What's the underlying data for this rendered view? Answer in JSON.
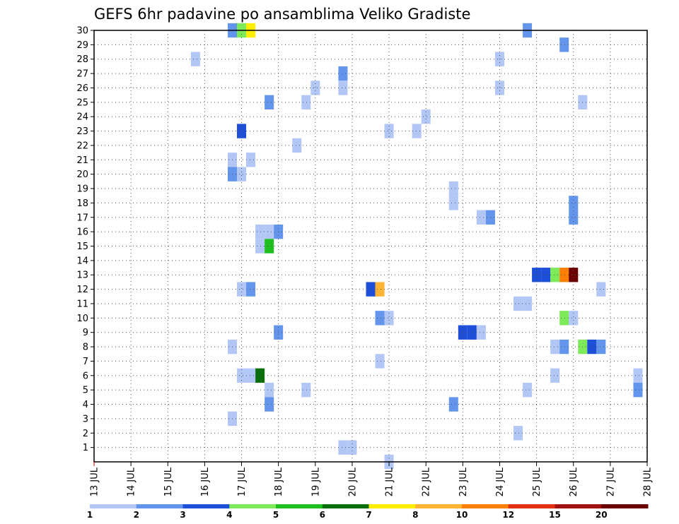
{
  "chart_data": {
    "type": "heatmap",
    "title": "GEFS 6hr padavine po ansamblima Veliko Gradiste",
    "x_tick_labels": [
      "13 JUL",
      "14 JUL",
      "15 JUL",
      "16 JUL",
      "17 JUL",
      "18 JUL",
      "19 JUL",
      "20 JUL",
      "21 JUL",
      "22 JUL",
      "23 JUL",
      "24 JUL",
      "25 JUL",
      "26 JUL",
      "27 JUL",
      "28 JUL"
    ],
    "x_range_days": [
      13,
      28
    ],
    "y_tick_labels": [
      "1",
      "2",
      "3",
      "4",
      "5",
      "6",
      "7",
      "8",
      "9",
      "10",
      "11",
      "12",
      "13",
      "14",
      "15",
      "16",
      "17",
      "18",
      "19",
      "20",
      "21",
      "22",
      "23",
      "24",
      "25",
      "26",
      "27",
      "28",
      "29",
      "30"
    ],
    "y_range": [
      0,
      30
    ],
    "grid": true,
    "colorbar": {
      "labels": [
        "1",
        "2",
        "3",
        "4",
        "5",
        "6",
        "7",
        "8",
        "10",
        "12",
        "15",
        "20"
      ],
      "colors": [
        "#b3c7f7",
        "#6495ed",
        "#1e4fd8",
        "#7dea5a",
        "#1fbf1f",
        "#0a6f0a",
        "#ffee00",
        "#ffb433",
        "#ff7f00",
        "#e03010",
        "#a31010",
        "#6b0000"
      ]
    },
    "cells": [
      [
        30,
        16.75,
        2
      ],
      [
        30,
        17.0,
        4
      ],
      [
        30,
        17.25,
        7
      ],
      [
        30,
        24.75,
        2
      ],
      [
        29,
        25.75,
        2
      ],
      [
        28,
        15.75,
        1
      ],
      [
        28,
        24.0,
        1
      ],
      [
        27,
        19.75,
        2
      ],
      [
        26,
        19.0,
        1
      ],
      [
        26,
        19.75,
        1
      ],
      [
        26,
        24.0,
        1
      ],
      [
        25,
        17.75,
        2
      ],
      [
        25,
        18.75,
        1
      ],
      [
        25,
        26.25,
        1
      ],
      [
        24,
        22.0,
        1
      ],
      [
        23,
        17.0,
        3
      ],
      [
        23,
        21.0,
        1
      ],
      [
        23,
        21.75,
        1
      ],
      [
        22,
        18.5,
        1
      ],
      [
        21,
        16.75,
        1
      ],
      [
        21,
        17.25,
        1
      ],
      [
        20,
        16.75,
        2
      ],
      [
        20,
        17.0,
        1
      ],
      [
        19,
        22.75,
        1
      ],
      [
        18,
        22.75,
        1
      ],
      [
        18,
        26.0,
        2
      ],
      [
        17,
        23.5,
        1
      ],
      [
        17,
        23.75,
        2
      ],
      [
        17,
        26.0,
        2
      ],
      [
        16,
        17.5,
        1
      ],
      [
        16,
        17.75,
        1
      ],
      [
        16,
        18.0,
        2
      ],
      [
        15,
        17.5,
        1
      ],
      [
        15,
        17.75,
        5
      ],
      [
        13,
        25.0,
        3
      ],
      [
        13,
        25.25,
        3
      ],
      [
        13,
        25.5,
        4
      ],
      [
        13,
        25.75,
        9
      ],
      [
        13,
        26.0,
        12
      ],
      [
        12,
        17.0,
        1
      ],
      [
        12,
        17.25,
        2
      ],
      [
        12,
        20.5,
        3
      ],
      [
        12,
        20.75,
        8
      ],
      [
        12,
        26.75,
        1
      ],
      [
        11,
        24.5,
        1
      ],
      [
        11,
        24.75,
        1
      ],
      [
        10,
        20.75,
        2
      ],
      [
        10,
        21.0,
        1
      ],
      [
        10,
        25.75,
        4
      ],
      [
        10,
        26.0,
        1
      ],
      [
        9,
        18.0,
        2
      ],
      [
        9,
        23.0,
        3
      ],
      [
        9,
        23.25,
        3
      ],
      [
        9,
        23.5,
        1
      ],
      [
        8,
        16.75,
        1
      ],
      [
        8,
        25.5,
        1
      ],
      [
        8,
        25.75,
        2
      ],
      [
        8,
        26.25,
        4
      ],
      [
        8,
        26.5,
        3
      ],
      [
        8,
        26.75,
        2
      ],
      [
        7,
        20.75,
        1
      ],
      [
        6,
        17.0,
        1
      ],
      [
        6,
        17.25,
        1
      ],
      [
        6,
        17.5,
        6
      ],
      [
        6,
        25.5,
        1
      ],
      [
        6,
        27.75,
        1
      ],
      [
        5,
        17.75,
        1
      ],
      [
        5,
        18.75,
        1
      ],
      [
        5,
        24.75,
        1
      ],
      [
        5,
        27.75,
        2
      ],
      [
        4,
        17.75,
        2
      ],
      [
        4,
        22.75,
        2
      ],
      [
        3,
        16.75,
        1
      ],
      [
        2,
        24.5,
        1
      ],
      [
        1,
        19.75,
        1
      ],
      [
        1,
        20.0,
        1
      ],
      [
        0,
        21.0,
        1
      ]
    ]
  }
}
